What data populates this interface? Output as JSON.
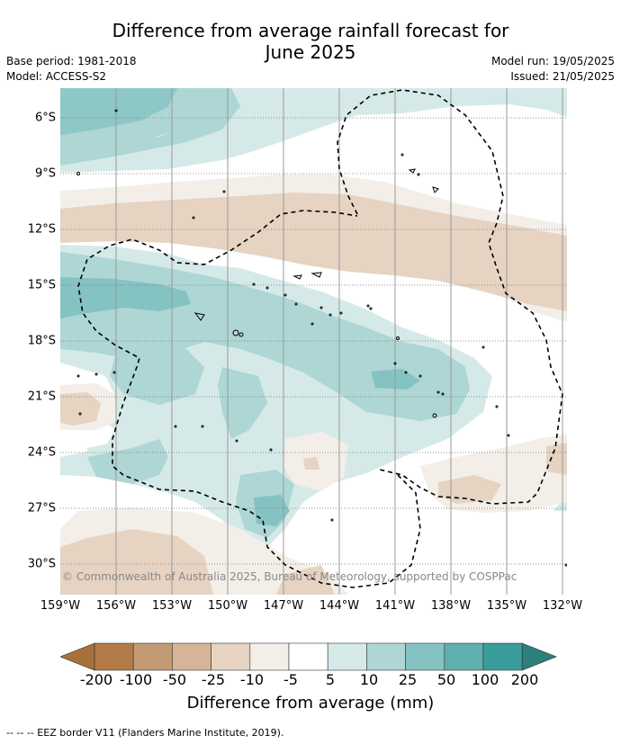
{
  "header": {
    "title_line1": "Difference from average rainfall forecast for",
    "title_line2": "June 2025",
    "base_period": "Base period: 1981-2018",
    "model": "Model: ACCESS-S2",
    "model_run": "Model run: 19/05/2025",
    "issued": "Issued: 21/05/2025"
  },
  "map": {
    "lat_labels": [
      "6°S",
      "9°S",
      "12°S",
      "15°S",
      "18°S",
      "21°S",
      "24°S",
      "27°S",
      "30°S"
    ],
    "lon_labels": [
      "159°W",
      "156°W",
      "153°W",
      "150°W",
      "147°W",
      "144°W",
      "141°W",
      "138°W",
      "135°W",
      "132°W"
    ],
    "copyright": "© Commonwealth of Australia 2025, Bureau of Meteorology, supported by COSPPac",
    "border_style": "dashed"
  },
  "colorbar": {
    "ticks": [
      "-200",
      "-100",
      "-50",
      "-25",
      "-10",
      "-5",
      "5",
      "10",
      "25",
      "50",
      "100",
      "200"
    ],
    "colors": [
      "#a8713a",
      "#b27a47",
      "#c49a74",
      "#d6b497",
      "#e6d3c2",
      "#f3eee8",
      "#ffffff",
      "#d5eae8",
      "#add6d5",
      "#84c3c2",
      "#5eafae",
      "#389d9a",
      "#2b7f7c"
    ],
    "label": "Difference from average (mm)"
  },
  "footnote": "--  --  -- EEZ border V11 (Flanders Marine Institute, 2019)."
}
